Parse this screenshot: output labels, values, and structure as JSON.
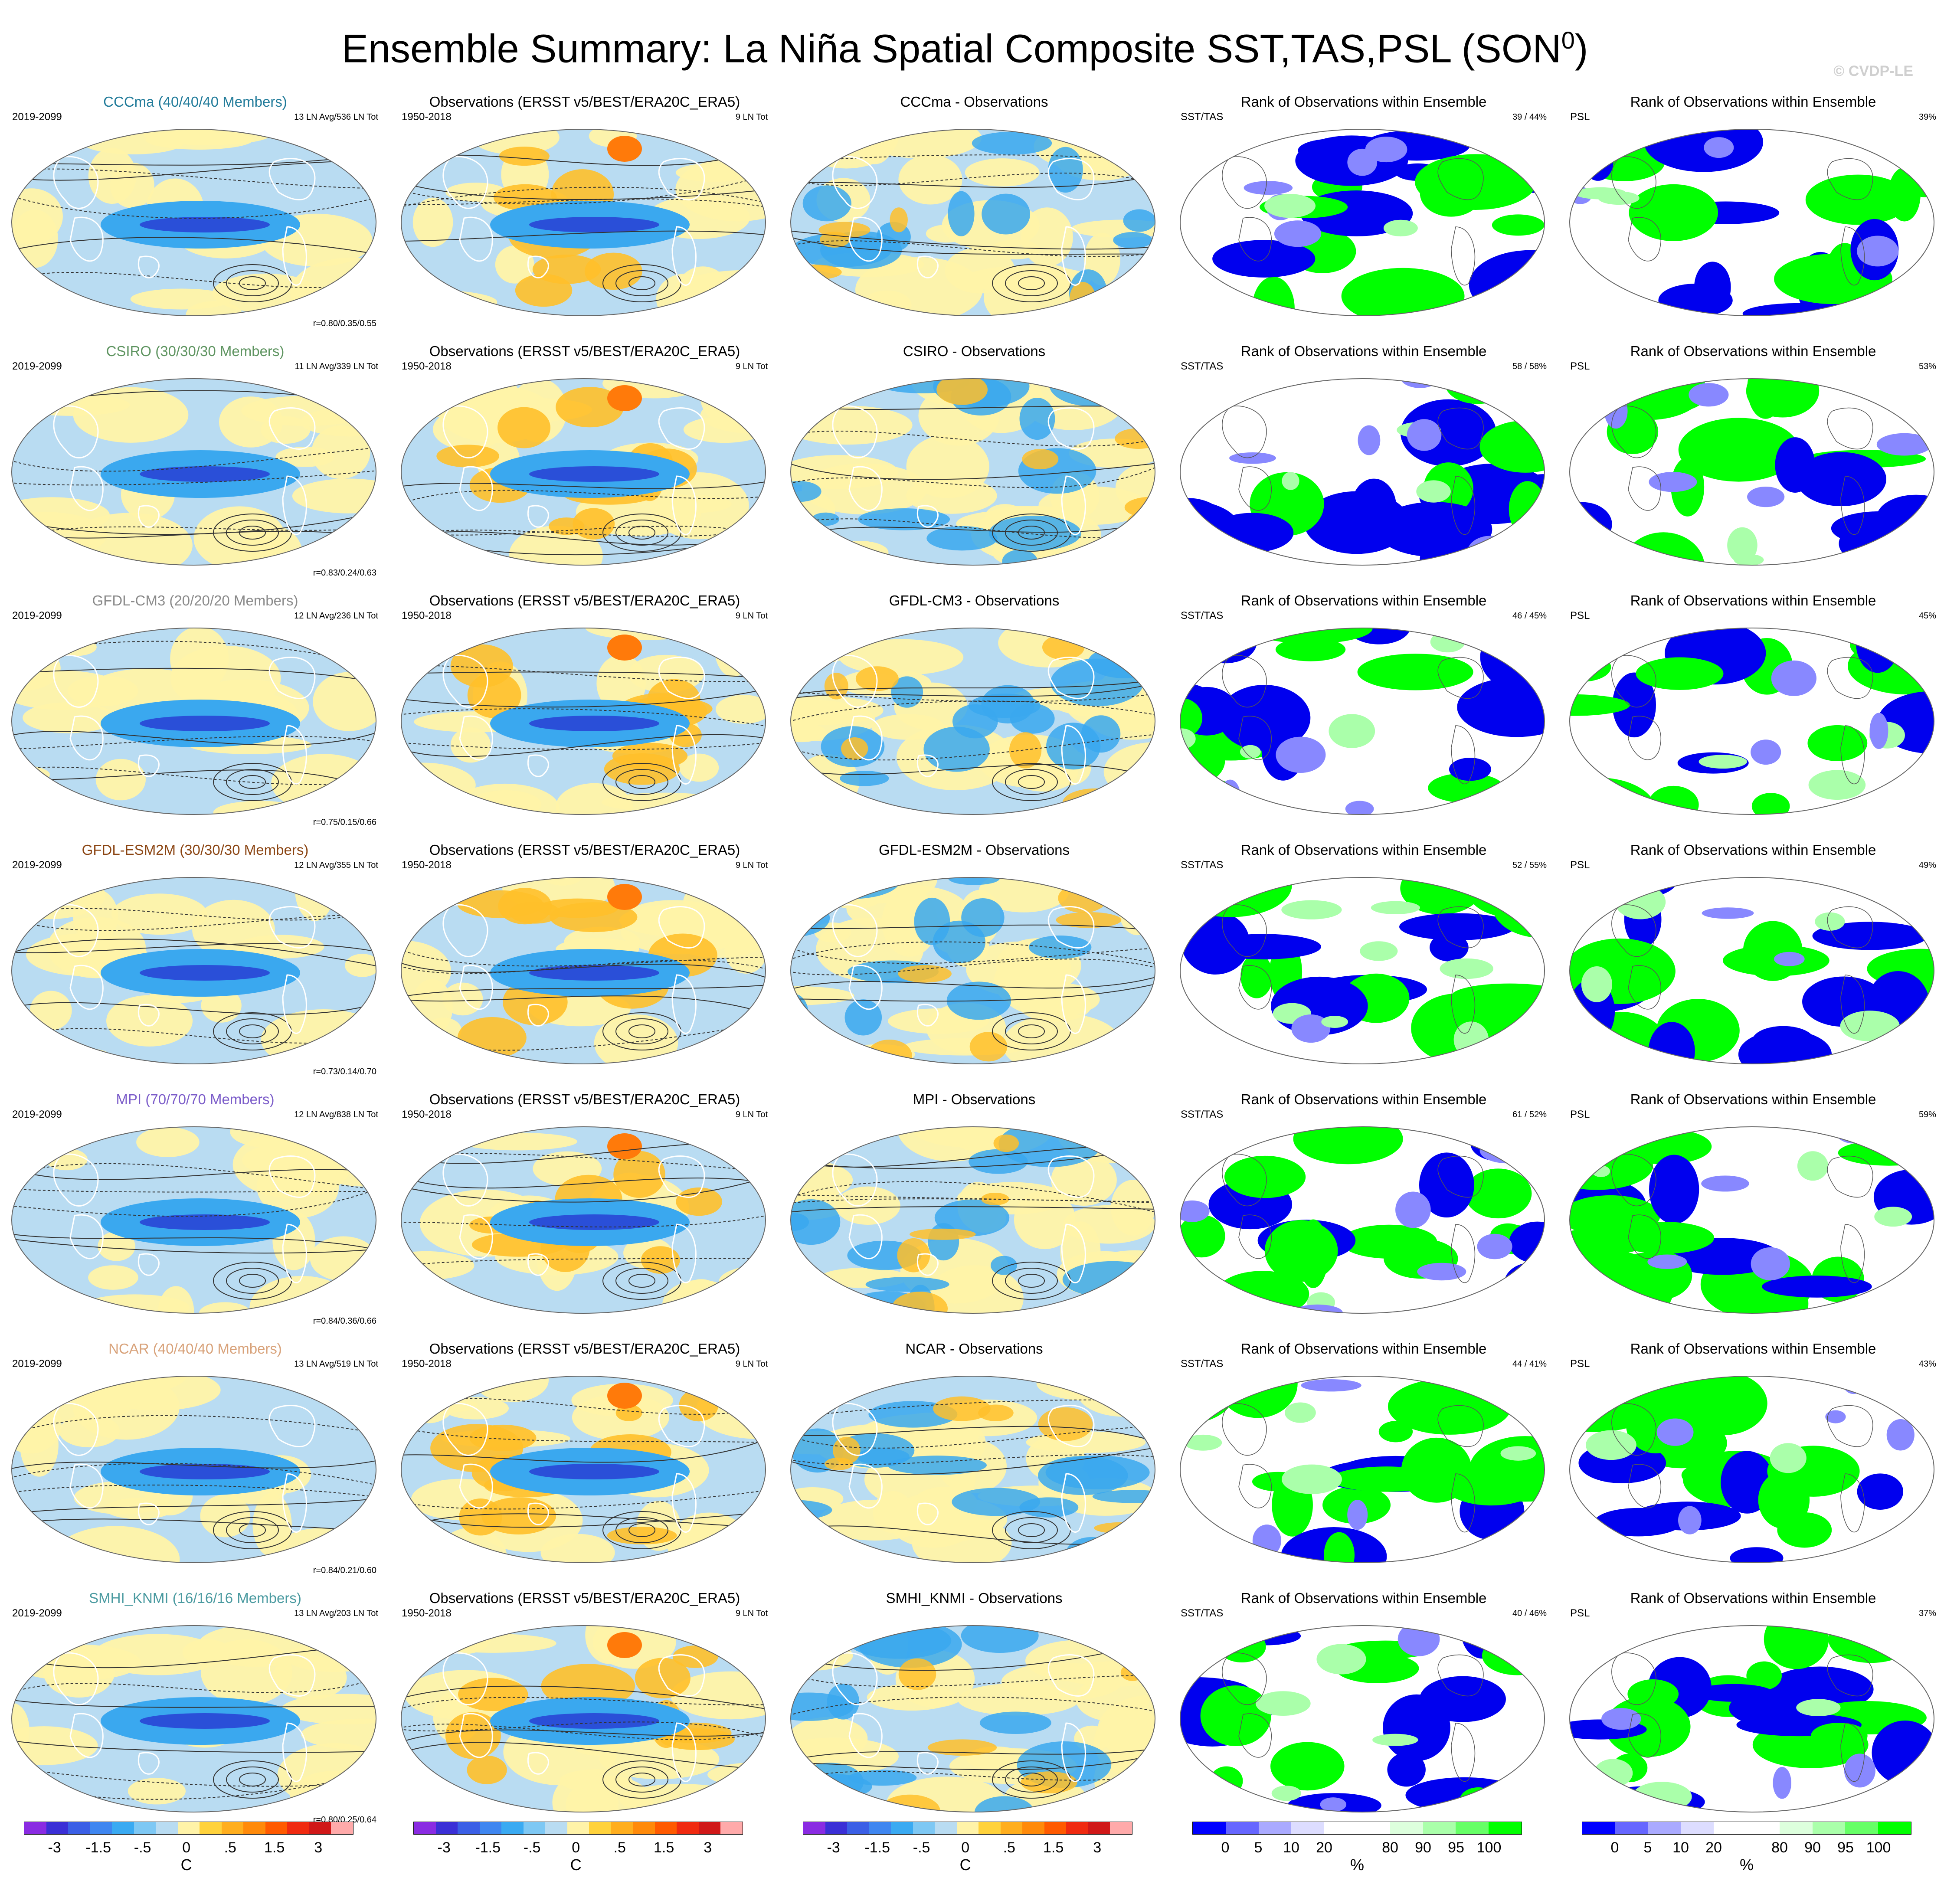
{
  "header": {
    "title_main": "Ensemble Summary: La Niña Spatial Composite SST,TAS,PSL (SON",
    "title_sup": "0",
    "title_close": ")",
    "watermark": "© CVDP-LE"
  },
  "rows": [
    {
      "model": "CCCma",
      "color": "#1f7a99",
      "ens_title": "CCCma (40/40/40 Members)",
      "ens_years": "2019-2099",
      "ens_counts": "13 LN Avg/536 LN Tot",
      "ens_corr": "r=0.80/0.35/0.55",
      "obs_title": "Observations (ERSST v5/BEST/ERA20C_ERA5)",
      "obs_years": "1950-2018",
      "obs_counts": "9 LN Tot",
      "diff_title": "CCCma - Observations",
      "rank1_title": "Rank of Observations within Ensemble",
      "rank1_left": "SST/TAS",
      "rank1_right": "39 /  44%",
      "rank2_title": "Rank of Observations within Ensemble",
      "rank2_left": "PSL",
      "rank2_right": "39%"
    },
    {
      "model": "CSIRO",
      "color": "#5e9460",
      "ens_title": "CSIRO (30/30/30 Members)",
      "ens_years": "2019-2099",
      "ens_counts": "11 LN Avg/339 LN Tot",
      "ens_corr": "r=0.83/0.24/0.63",
      "obs_title": "Observations (ERSST v5/BEST/ERA20C_ERA5)",
      "obs_years": "1950-2018",
      "obs_counts": "9 LN Tot",
      "diff_title": "CSIRO - Observations",
      "rank1_title": "Rank of Observations within Ensemble",
      "rank1_left": "SST/TAS",
      "rank1_right": "58 /  58%",
      "rank2_title": "Rank of Observations within Ensemble",
      "rank2_left": "PSL",
      "rank2_right": "53%"
    },
    {
      "model": "GFDL-CM3",
      "color": "#8a8a8a",
      "ens_title": "GFDL-CM3 (20/20/20 Members)",
      "ens_years": "2019-2099",
      "ens_counts": "12 LN Avg/236 LN Tot",
      "ens_corr": "r=0.75/0.15/0.66",
      "obs_title": "Observations (ERSST v5/BEST/ERA20C_ERA5)",
      "obs_years": "1950-2018",
      "obs_counts": "9 LN Tot",
      "diff_title": "GFDL-CM3 - Observations",
      "rank1_title": "Rank of Observations within Ensemble",
      "rank1_left": "SST/TAS",
      "rank1_right": "46 /  45%",
      "rank2_title": "Rank of Observations within Ensemble",
      "rank2_left": "PSL",
      "rank2_right": "45%"
    },
    {
      "model": "GFDL-ESM2M",
      "color": "#8b4513",
      "ens_title": "GFDL-ESM2M (30/30/30 Members)",
      "ens_years": "2019-2099",
      "ens_counts": "12 LN Avg/355 LN Tot",
      "ens_corr": "r=0.73/0.14/0.70",
      "obs_title": "Observations (ERSST v5/BEST/ERA20C_ERA5)",
      "obs_years": "1950-2018",
      "obs_counts": "9 LN Tot",
      "diff_title": "GFDL-ESM2M - Observations",
      "rank1_title": "Rank of Observations within Ensemble",
      "rank1_left": "SST/TAS",
      "rank1_right": "52 /  55%",
      "rank2_title": "Rank of Observations within Ensemble",
      "rank2_left": "PSL",
      "rank2_right": "49%"
    },
    {
      "model": "MPI",
      "color": "#7b5cc9",
      "ens_title": "MPI (70/70/70 Members)",
      "ens_years": "2019-2099",
      "ens_counts": "12 LN Avg/838 LN Tot",
      "ens_corr": "r=0.84/0.36/0.66",
      "obs_title": "Observations (ERSST v5/BEST/ERA20C_ERA5)",
      "obs_years": "1950-2018",
      "obs_counts": "9 LN Tot",
      "diff_title": "MPI - Observations",
      "rank1_title": "Rank of Observations within Ensemble",
      "rank1_left": "SST/TAS",
      "rank1_right": "61 /  52%",
      "rank2_title": "Rank of Observations within Ensemble",
      "rank2_left": "PSL",
      "rank2_right": "59%"
    },
    {
      "model": "NCAR",
      "color": "#d8a27a",
      "ens_title": "NCAR (40/40/40 Members)",
      "ens_years": "2019-2099",
      "ens_counts": "13 LN Avg/519 LN Tot",
      "ens_corr": "r=0.84/0.21/0.60",
      "obs_title": "Observations (ERSST v5/BEST/ERA20C_ERA5)",
      "obs_years": "1950-2018",
      "obs_counts": "9 LN Tot",
      "diff_title": "NCAR - Observations",
      "rank1_title": "Rank of Observations within Ensemble",
      "rank1_left": "SST/TAS",
      "rank1_right": "44 /  41%",
      "rank2_title": "Rank of Observations within Ensemble",
      "rank2_left": "PSL",
      "rank2_right": "43%"
    },
    {
      "model": "SMHI_KNMI",
      "color": "#4a9aa0",
      "ens_title": "SMHI_KNMI (16/16/16 Members)",
      "ens_years": "2019-2099",
      "ens_counts": "13 LN Avg/203 LN Tot",
      "ens_corr": "r=0.80/0.25/0.64",
      "obs_title": "Observations (ERSST v5/BEST/ERA20C_ERA5)",
      "obs_years": "1950-2018",
      "obs_counts": "9 LN Tot",
      "diff_title": "SMHI_KNMI - Observations",
      "rank1_title": "Rank of Observations within Ensemble",
      "rank1_left": "SST/TAS",
      "rank1_right": "40 /  46%",
      "rank2_title": "Rank of Observations within Ensemble",
      "rank2_left": "PSL",
      "rank2_right": "37%"
    }
  ],
  "colorbars": {
    "temperature": {
      "unit": "C",
      "colors": [
        "#8a2be2",
        "#3b2fd6",
        "#3b5fe6",
        "#3f86f0",
        "#3aaaf2",
        "#7ec8f4",
        "#b9dcf2",
        "#fff3a8",
        "#ffd23c",
        "#ffae1e",
        "#ff8a0a",
        "#ff5a00",
        "#f02a10",
        "#d01818",
        "#ffaaaa"
      ],
      "ticks": [
        "-3",
        "-1.5",
        "-.5",
        "0",
        ".5",
        "1.5",
        "3"
      ]
    },
    "rank": {
      "unit": "%",
      "colors": [
        "#0000ff",
        "#6666ff",
        "#aaaaff",
        "#ddddff",
        "#ffffff",
        "#ffffff",
        "#ddffdd",
        "#aaffaa",
        "#66ff66",
        "#00ff00"
      ],
      "ticks": [
        "0",
        "5",
        "10",
        "20",
        "80",
        "90",
        "95",
        "100"
      ]
    }
  },
  "map_palette": {
    "cold_strong": "#2a4fd8",
    "cold": "#3aa8ef",
    "cool": "#b9dcf2",
    "warm": "#fff3a8",
    "warmer": "#ffc02a",
    "hot": "#ff7a0a",
    "rank_low": "#0000ee",
    "rank_lowmid": "#8888ff",
    "rank_high": "#00ff00",
    "rank_highmid": "#aaffaa"
  }
}
